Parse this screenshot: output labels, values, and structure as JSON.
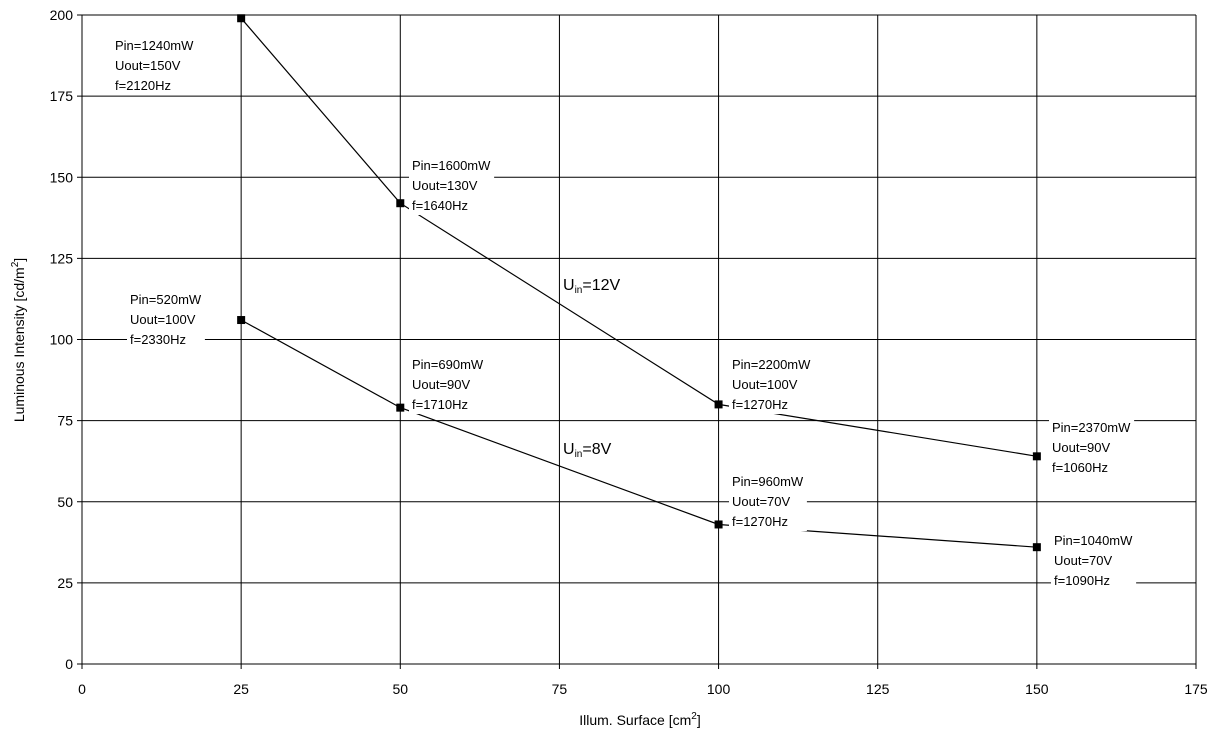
{
  "chart_data": {
    "type": "line",
    "xlabel": "Illum. Surface [cm",
    "xlabel_sup": "2",
    "xlabel_end": "]",
    "ylabel": "Luminous Intensity [cd/m",
    "ylabel_sup": "2",
    "ylabel_end": "]",
    "xlim": [
      0,
      175
    ],
    "ylim": [
      0,
      200
    ],
    "xticks": [
      "0",
      "25",
      "50",
      "75",
      "100",
      "125",
      "150",
      "175"
    ],
    "yticks": [
      "0",
      "25",
      "50",
      "75",
      "100",
      "125",
      "150",
      "175",
      "200"
    ],
    "grid": true,
    "series": [
      {
        "name_main": "U",
        "name_sub": "in",
        "name_rest": "=12V",
        "x": [
          25,
          50,
          100,
          150
        ],
        "y": [
          199,
          142,
          80,
          64
        ],
        "annotations": [
          [
            "Pin=1240mW",
            "Uout=150V",
            "f=2120Hz"
          ],
          [
            "Pin=1600mW",
            "Uout=130V",
            "f=1640Hz"
          ],
          [
            "Pin=2200mW",
            "Uout=100V",
            "f=1270Hz"
          ],
          [
            "Pin=2370mW",
            "Uout=90V",
            "f=1060Hz"
          ]
        ]
      },
      {
        "name_main": "U",
        "name_sub": "in",
        "name_rest": "=8V",
        "x": [
          25,
          50,
          100,
          150
        ],
        "y": [
          106,
          79,
          43,
          36
        ],
        "annotations": [
          [
            "Pin=520mW",
            "Uout=100V",
            "f=2330Hz"
          ],
          [
            "Pin=690mW",
            "Uout=90V",
            "f=1710Hz"
          ],
          [
            "Pin=960mW",
            "Uout=70V",
            "f=1270Hz"
          ],
          [
            "Pin=1040mW",
            "Uout=70V",
            "f=1090Hz"
          ]
        ]
      }
    ]
  },
  "colors": {
    "line": "#000000",
    "grid": "#000000",
    "background": "#ffffff"
  }
}
